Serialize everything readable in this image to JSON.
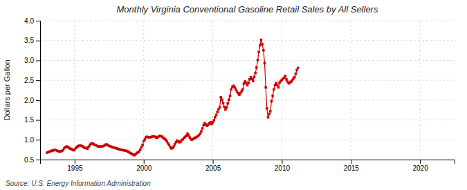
{
  "chart_data": {
    "type": "line",
    "title": "Monthly Virginia Conventional Gasoline Retail Sales by All Sellers",
    "ylabel": "Dollars per Gallon",
    "source": "Source: U.S. Energy Information Administration",
    "color": "#cc0000",
    "marker": "square",
    "line_style": "solid",
    "grid": true,
    "xlim": [
      1992.5,
      2022.5
    ],
    "xticks": [
      1995,
      2000,
      2005,
      2010,
      2015,
      2020
    ],
    "ylim": [
      0.5,
      4.0
    ],
    "yticks": [
      0.5,
      {
        "value": 1.0,
        "label": "1.0"
      },
      1.5,
      {
        "value": 2.0,
        "label": "2.0"
      },
      2.5,
      {
        "value": 3.0,
        "label": "3.0"
      },
      3.5,
      {
        "value": 4.0,
        "label": "4.0"
      }
    ],
    "x": [
      1993.0,
      1993.083,
      1993.167,
      1993.25,
      1993.333,
      1993.417,
      1993.5,
      1993.583,
      1993.667,
      1993.75,
      1993.833,
      1993.917,
      1994.0,
      1994.083,
      1994.167,
      1994.25,
      1994.333,
      1994.417,
      1994.5,
      1994.583,
      1994.667,
      1994.75,
      1994.833,
      1994.917,
      1995.0,
      1995.083,
      1995.167,
      1995.25,
      1995.333,
      1995.417,
      1995.5,
      1995.583,
      1995.667,
      1995.75,
      1995.833,
      1995.917,
      1996.0,
      1996.083,
      1996.167,
      1996.25,
      1996.333,
      1996.417,
      1996.5,
      1996.583,
      1996.667,
      1996.75,
      1996.833,
      1996.917,
      1997.0,
      1997.083,
      1997.167,
      1997.25,
      1997.333,
      1997.417,
      1997.5,
      1997.583,
      1997.667,
      1997.75,
      1997.833,
      1997.917,
      1998.0,
      1998.083,
      1998.167,
      1998.25,
      1998.333,
      1998.417,
      1998.5,
      1998.583,
      1998.667,
      1998.75,
      1998.833,
      1998.917,
      1999.0,
      1999.083,
      1999.167,
      1999.25,
      1999.333,
      1999.417,
      1999.5,
      1999.583,
      1999.667,
      1999.75,
      1999.833,
      1999.917,
      2000.0,
      2000.083,
      2000.167,
      2000.25,
      2000.333,
      2000.417,
      2000.5,
      2000.583,
      2000.667,
      2000.75,
      2000.833,
      2000.917,
      2001.0,
      2001.083,
      2001.167,
      2001.25,
      2001.333,
      2001.417,
      2001.5,
      2001.583,
      2001.667,
      2001.75,
      2001.833,
      2001.917,
      2002.0,
      2002.083,
      2002.167,
      2002.25,
      2002.333,
      2002.417,
      2002.5,
      2002.583,
      2002.667,
      2002.75,
      2002.833,
      2002.917,
      2003.0,
      2003.083,
      2003.167,
      2003.25,
      2003.333,
      2003.417,
      2003.5,
      2003.583,
      2003.667,
      2003.75,
      2003.833,
      2003.917,
      2004.0,
      2004.083,
      2004.167,
      2004.25,
      2004.333,
      2004.417,
      2004.5,
      2004.583,
      2004.667,
      2004.75,
      2004.833,
      2004.917,
      2005.0,
      2005.083,
      2005.167,
      2005.25,
      2005.333,
      2005.417,
      2005.5,
      2005.583,
      2005.667,
      2005.75,
      2005.833,
      2005.917,
      2006.0,
      2006.083,
      2006.167,
      2006.25,
      2006.333,
      2006.417,
      2006.5,
      2006.583,
      2006.667,
      2006.75,
      2006.833,
      2006.917,
      2007.0,
      2007.083,
      2007.167,
      2007.25,
      2007.333,
      2007.417,
      2007.5,
      2007.583,
      2007.667,
      2007.75,
      2007.833,
      2007.917,
      2008.0,
      2008.083,
      2008.167,
      2008.25,
      2008.333,
      2008.417,
      2008.5,
      2008.583,
      2008.667,
      2008.75,
      2008.833,
      2008.917,
      2009.0,
      2009.083,
      2009.167,
      2009.25,
      2009.333,
      2009.417,
      2009.5,
      2009.583,
      2009.667,
      2009.75,
      2009.833,
      2009.917,
      2010.0,
      2010.083,
      2010.167,
      2010.25,
      2010.333,
      2010.417,
      2010.5,
      2010.583,
      2010.667,
      2010.75,
      2010.833,
      2010.917,
      2011.0,
      2011.083,
      2011.167
    ],
    "values": [
      0.675,
      0.685,
      0.7,
      0.71,
      0.725,
      0.725,
      0.74,
      0.745,
      0.735,
      0.72,
      0.71,
      0.7,
      0.71,
      0.72,
      0.74,
      0.79,
      0.815,
      0.83,
      0.82,
      0.8,
      0.775,
      0.77,
      0.75,
      0.735,
      0.755,
      0.79,
      0.82,
      0.835,
      0.855,
      0.855,
      0.845,
      0.83,
      0.81,
      0.795,
      0.79,
      0.775,
      0.82,
      0.855,
      0.895,
      0.91,
      0.9,
      0.88,
      0.87,
      0.855,
      0.835,
      0.825,
      0.83,
      0.825,
      0.835,
      0.84,
      0.86,
      0.88,
      0.88,
      0.86,
      0.845,
      0.835,
      0.82,
      0.81,
      0.805,
      0.795,
      0.785,
      0.78,
      0.765,
      0.76,
      0.75,
      0.745,
      0.74,
      0.73,
      0.725,
      0.72,
      0.705,
      0.69,
      0.67,
      0.655,
      0.64,
      0.625,
      0.61,
      0.64,
      0.67,
      0.68,
      0.705,
      0.75,
      0.815,
      0.87,
      0.965,
      1.01,
      1.065,
      1.075,
      1.06,
      1.065,
      1.06,
      1.075,
      1.09,
      1.085,
      1.075,
      1.05,
      1.06,
      1.085,
      1.1,
      1.095,
      1.075,
      1.05,
      1.025,
      1.005,
      0.96,
      0.91,
      0.87,
      0.82,
      0.78,
      0.79,
      0.83,
      0.885,
      0.94,
      0.98,
      0.955,
      0.935,
      0.955,
      0.99,
      1.01,
      1.05,
      1.07,
      1.105,
      1.155,
      1.11,
      1.055,
      1.01,
      1.005,
      1.02,
      1.04,
      1.055,
      1.07,
      1.09,
      1.115,
      1.155,
      1.21,
      1.285,
      1.37,
      1.42,
      1.385,
      1.35,
      1.38,
      1.41,
      1.44,
      1.395,
      1.44,
      1.49,
      1.565,
      1.625,
      1.7,
      1.77,
      1.815,
      2.07,
      2.01,
      1.92,
      1.83,
      1.76,
      1.815,
      1.915,
      2.01,
      2.11,
      2.27,
      2.335,
      2.36,
      2.32,
      2.265,
      2.215,
      2.175,
      2.13,
      2.175,
      2.225,
      2.27,
      2.415,
      2.47,
      2.44,
      2.375,
      2.43,
      2.525,
      2.575,
      2.53,
      2.48,
      2.585,
      2.68,
      2.82,
      3.01,
      3.215,
      3.38,
      3.52,
      3.41,
      3.255,
      2.935,
      2.32,
      1.79,
      1.565,
      1.65,
      1.72,
      1.97,
      2.11,
      2.27,
      2.375,
      2.43,
      2.38,
      2.32,
      2.44,
      2.48,
      2.51,
      2.54,
      2.565,
      2.61,
      2.52,
      2.46,
      2.42,
      2.44,
      2.465,
      2.5,
      2.54,
      2.58,
      2.66,
      2.76,
      2.81
    ]
  }
}
